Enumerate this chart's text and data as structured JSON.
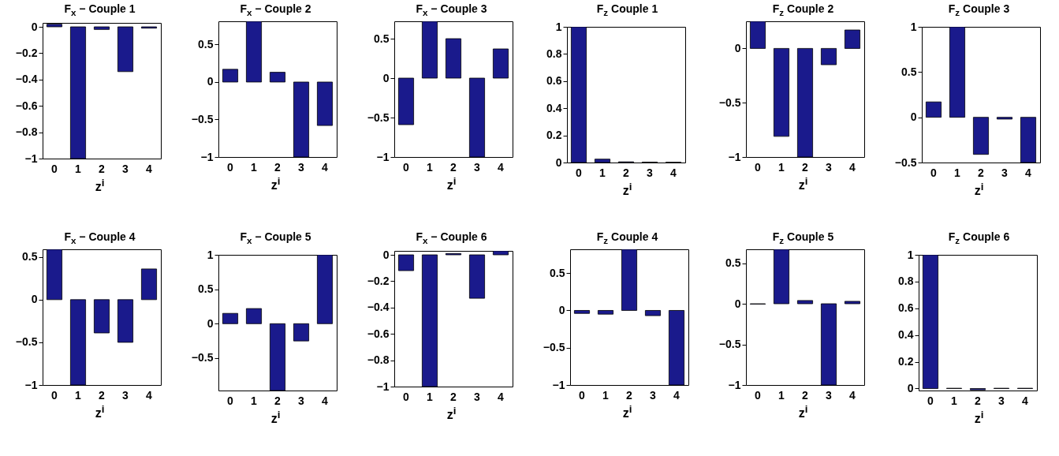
{
  "chart_data": [
    {
      "type": "bar",
      "title": "F$_{x}$ − Couple 1",
      "xlabel": "z$^{i}$",
      "categories": [
        "0",
        "1",
        "2",
        "3",
        "4"
      ],
      "values": [
        0.02,
        -1,
        -0.02,
        -0.34,
        -0.01
      ],
      "color": "#1a1a8c",
      "ylim": [
        -1,
        0.03
      ],
      "yticks": [
        -1,
        -0.8,
        -0.6,
        -0.4,
        -0.2,
        0
      ]
    },
    {
      "type": "bar",
      "title": "F$_{x}$ − Couple 2",
      "xlabel": "z$^{i}$",
      "categories": [
        "0",
        "1",
        "2",
        "3",
        "4"
      ],
      "values": [
        0.17,
        0.81,
        0.13,
        -1,
        -0.58
      ],
      "color": "#1a1a8c",
      "ylim": [
        -1,
        0.81
      ],
      "yticks": [
        -1,
        -0.5,
        0,
        0.5
      ]
    },
    {
      "type": "bar",
      "title": "F$_{x}$ − Couple 3",
      "xlabel": "z$^{i}$",
      "categories": [
        "0",
        "1",
        "2",
        "3",
        "4"
      ],
      "values": [
        -0.59,
        0.72,
        0.5,
        -1,
        0.37
      ],
      "color": "#1a1a8c",
      "ylim": [
        -1,
        0.72
      ],
      "yticks": [
        -1,
        -0.5,
        0,
        0.5
      ]
    },
    {
      "type": "bar",
      "title": "F$_{z}$ Couple 1",
      "xlabel": "z$^{i}$",
      "categories": [
        "0",
        "1",
        "2",
        "3",
        "4"
      ],
      "values": [
        1,
        0.025,
        0.005,
        0.003,
        0.002
      ],
      "color": "#1a1a8c",
      "ylim": [
        0,
        1
      ],
      "yticks": [
        0,
        0.2,
        0.4,
        0.6,
        0.8,
        1
      ]
    },
    {
      "type": "bar",
      "title": "F$_{z}$ Couple 2",
      "xlabel": "z$^{i}$",
      "categories": [
        "0",
        "1",
        "2",
        "3",
        "4"
      ],
      "values": [
        0.25,
        -0.81,
        -1,
        -0.15,
        0.17
      ],
      "color": "#1a1a8c",
      "ylim": [
        -1,
        0.25
      ],
      "yticks": [
        -1,
        -0.5,
        0
      ]
    },
    {
      "type": "bar",
      "title": "F$_{z}$ Couple 3",
      "xlabel": "z$^{i}$",
      "categories": [
        "0",
        "1",
        "2",
        "3",
        "4"
      ],
      "values": [
        0.17,
        1,
        -0.41,
        -0.02,
        -0.5
      ],
      "color": "#1a1a8c",
      "ylim": [
        -0.5,
        1
      ],
      "yticks": [
        -0.5,
        0,
        0.5,
        1
      ]
    },
    {
      "type": "bar",
      "title": "F$_{x}$ − Couple 4",
      "xlabel": "z$^{i}$",
      "categories": [
        "0",
        "1",
        "2",
        "3",
        "4"
      ],
      "values": [
        0.59,
        -1,
        -0.39,
        -0.5,
        0.36
      ],
      "color": "#1a1a8c",
      "ylim": [
        -1,
        0.59
      ],
      "yticks": [
        -1,
        -0.5,
        0,
        0.5
      ]
    },
    {
      "type": "bar",
      "title": "F$_{x}$ − Couple 5",
      "xlabel": "z$^{i}$",
      "categories": [
        "0",
        "1",
        "2",
        "3",
        "4"
      ],
      "values": [
        0.15,
        0.22,
        -0.97,
        -0.25,
        1
      ],
      "color": "#1a1a8c",
      "ylim": [
        -0.97,
        1
      ],
      "yticks": [
        -0.5,
        0,
        0.5,
        1
      ]
    },
    {
      "type": "bar",
      "title": "F$_{x}$ − Couple 6",
      "xlabel": "z$^{i}$",
      "categories": [
        "0",
        "1",
        "2",
        "3",
        "4"
      ],
      "values": [
        -0.12,
        -1,
        0.01,
        -0.33,
        0.03
      ],
      "color": "#1a1a8c",
      "ylim": [
        -1,
        0.03
      ],
      "yticks": [
        -1,
        -0.8,
        -0.6,
        -0.4,
        -0.2,
        0
      ]
    },
    {
      "type": "bar",
      "title": "F$_{z}$ Couple 4",
      "xlabel": "z$^{i}$",
      "categories": [
        "0",
        "1",
        "2",
        "3",
        "4"
      ],
      "values": [
        -0.04,
        -0.05,
        0.82,
        -0.07,
        -1
      ],
      "color": "#1a1a8c",
      "ylim": [
        -1,
        0.82
      ],
      "yticks": [
        -1,
        -0.5,
        0,
        0.5
      ]
    },
    {
      "type": "bar",
      "title": "F$_{z}$ Couple 5",
      "xlabel": "z$^{i}$",
      "categories": [
        "0",
        "1",
        "2",
        "3",
        "4"
      ],
      "values": [
        -0.005,
        0.67,
        0.04,
        -1,
        0.03
      ],
      "color": "#1a1a8c",
      "ylim": [
        -1,
        0.67
      ],
      "yticks": [
        -1,
        -0.5,
        0,
        0.5
      ]
    },
    {
      "type": "bar",
      "title": "F$_{z}$ Couple 6",
      "xlabel": "z$^{i}$",
      "categories": [
        "0",
        "1",
        "2",
        "3",
        "4"
      ],
      "values": [
        1,
        0.002,
        -0.01,
        0.002,
        0.002
      ],
      "color": "#1a1a8c",
      "ylim": [
        -0.015,
        1
      ],
      "yticks": [
        0,
        0.2,
        0.4,
        0.6,
        0.8,
        1
      ]
    }
  ]
}
